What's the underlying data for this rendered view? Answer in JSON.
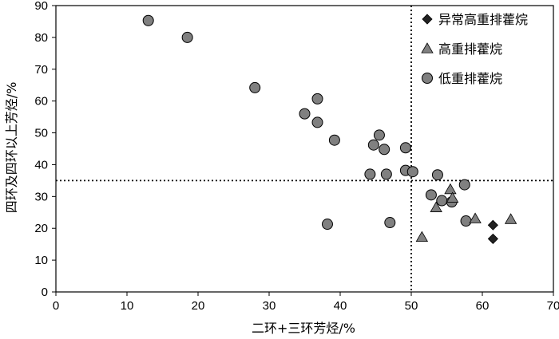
{
  "chart_data": {
    "type": "scatter",
    "xlabel": "二环+三环芳烃/%",
    "ylabel": "四环及四环以上芳烃/%",
    "xlim": [
      0,
      70
    ],
    "ylim": [
      0,
      90
    ],
    "xticks": [
      "0",
      "10",
      "20",
      "30",
      "40",
      "50",
      "60",
      "70"
    ],
    "yticks": [
      "0",
      "10",
      "20",
      "30",
      "40",
      "50",
      "60",
      "70",
      "80",
      "90"
    ],
    "reference_lines": {
      "x": 50,
      "y": 35
    },
    "grid": false,
    "legend_position": "top-right",
    "series": [
      {
        "name": "异常高重排藿烷",
        "marker": "diamond",
        "color": "#222222",
        "points": [
          [
            61.5,
            21
          ],
          [
            61.5,
            16.7
          ]
        ]
      },
      {
        "name": "高重排藿烷",
        "marker": "triangle",
        "color": "#808080",
        "points": [
          [
            51.5,
            17.2
          ],
          [
            53.5,
            26.5
          ],
          [
            55.5,
            32.2
          ],
          [
            55.8,
            29.5
          ],
          [
            59,
            23
          ],
          [
            64,
            22.8
          ]
        ]
      },
      {
        "name": "低重排藿烷",
        "marker": "circle",
        "color": "#808080",
        "points": [
          [
            13,
            85.3
          ],
          [
            18.5,
            80
          ],
          [
            28,
            64.2
          ],
          [
            36.8,
            60.7
          ],
          [
            35,
            56
          ],
          [
            36.8,
            53.3
          ],
          [
            39.2,
            47.7
          ],
          [
            45.5,
            49.3
          ],
          [
            44.7,
            46.2
          ],
          [
            46.2,
            44.8
          ],
          [
            49.2,
            45.3
          ],
          [
            44.2,
            37
          ],
          [
            46.5,
            37
          ],
          [
            49.2,
            38.2
          ],
          [
            50.2,
            37.8
          ],
          [
            53.7,
            36.8
          ],
          [
            57.5,
            33.7
          ],
          [
            52.8,
            30.5
          ],
          [
            54.3,
            28.7
          ],
          [
            55.7,
            28.3
          ],
          [
            57.7,
            22.3
          ],
          [
            47,
            21.8
          ],
          [
            38.2,
            21.3
          ]
        ]
      }
    ]
  }
}
